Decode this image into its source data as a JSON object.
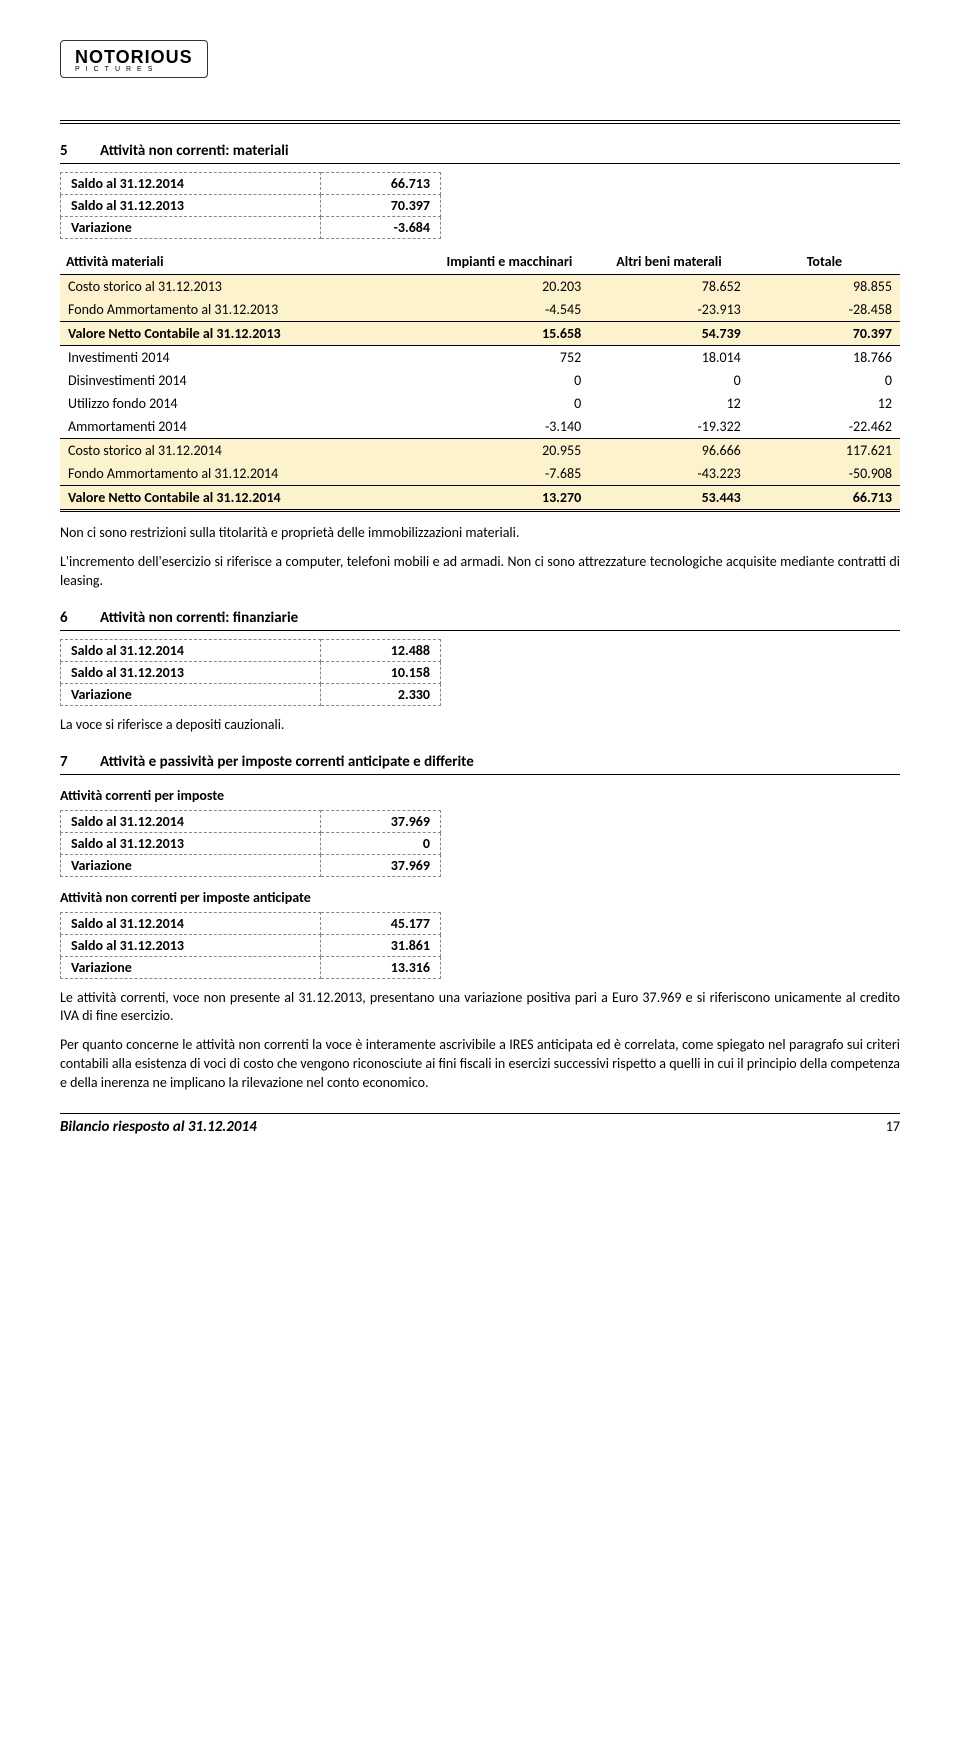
{
  "logo": {
    "title": "NOTORIOUS",
    "subtitle": "PICTURES"
  },
  "section5": {
    "num": "5",
    "title": "Attività non correnti: materiali",
    "summary": [
      {
        "label": "Saldo al 31.12.2014",
        "value": "66.713"
      },
      {
        "label": "Saldo al 31.12.2013",
        "value": "70.397"
      },
      {
        "label": "Variazione",
        "value": "-3.684"
      }
    ],
    "headers": [
      "Attività materiali",
      "Impianti e macchinari",
      "Altri beni materali",
      "Totale"
    ],
    "rows": [
      {
        "hl": true,
        "label": "Costo storico al 31.12.2013",
        "c1": "20.203",
        "c2": "78.652",
        "c3": "98.855"
      },
      {
        "hl": true,
        "underline": true,
        "label": "Fondo Ammortamento al 31.12.2013",
        "c1": "-4.545",
        "c2": "-23.913",
        "c3": "-28.458"
      },
      {
        "hl": true,
        "bold": true,
        "underline": true,
        "label": "Valore Netto Contabile al 31.12.2013",
        "c1": "15.658",
        "c2": "54.739",
        "c3": "70.397"
      },
      {
        "label": "Investimenti 2014",
        "c1": "752",
        "c2": "18.014",
        "c3": "18.766"
      },
      {
        "label": "Disinvestimenti 2014",
        "c1": "0",
        "c2": "0",
        "c3": "0"
      },
      {
        "label": "Utilizzo fondo 2014",
        "c1": "0",
        "c2": "12",
        "c3": "12"
      },
      {
        "underline": true,
        "label": "Ammortamenti 2014",
        "c1": "-3.140",
        "c2": "-19.322",
        "c3": "-22.462"
      },
      {
        "hl": true,
        "label": "Costo storico al 31.12.2014",
        "c1": "20.955",
        "c2": "96.666",
        "c3": "117.621"
      },
      {
        "hl": true,
        "underline": true,
        "label": "Fondo Ammortamento al 31.12.2014",
        "c1": "-7.685",
        "c2": "-43.223",
        "c3": "-50.908"
      },
      {
        "hl": true,
        "bold": true,
        "dblbottom": true,
        "label": "Valore Netto Contabile al 31.12.2014",
        "c1": "13.270",
        "c2": "53.443",
        "c3": "66.713"
      }
    ],
    "para1": "Non ci sono restrizioni sulla titolarità e proprietà delle immobilizzazioni materiali.",
    "para2": "L'incremento dell'esercizio si riferisce a computer, telefoni mobili e ad armadi. Non ci sono attrezzature tecnologiche acquisite mediante contratti di leasing."
  },
  "section6": {
    "num": "6",
    "title": "Attività non correnti: finanziarie",
    "summary": [
      {
        "label": "Saldo al 31.12.2014",
        "value": "12.488"
      },
      {
        "label": "Saldo al 31.12.2013",
        "value": "10.158"
      },
      {
        "label": "Variazione",
        "value": "2.330"
      }
    ],
    "para": "La voce si riferisce a depositi cauzionali."
  },
  "section7": {
    "num": "7",
    "title": "Attività e passività per imposte correnti anticipate e differite",
    "sub1": "Attività correnti per imposte",
    "summary1": [
      {
        "label": "Saldo al 31.12.2014",
        "value": "37.969"
      },
      {
        "label": "Saldo al 31.12.2013",
        "value": "0"
      },
      {
        "label": "Variazione",
        "value": "37.969"
      }
    ],
    "sub2": "Attività non correnti per imposte anticipate",
    "summary2": [
      {
        "label": "Saldo al 31.12.2014",
        "value": "45.177"
      },
      {
        "label": "Saldo al 31.12.2013",
        "value": "31.861"
      },
      {
        "label": "Variazione",
        "value": "13.316"
      }
    ],
    "para1": "Le attività correnti, voce non presente al 31.12.2013, presentano una variazione positiva pari a Euro 37.969 e si riferiscono unicamente al credito IVA di fine esercizio.",
    "para2": "Per quanto concerne le attività non correnti la voce è interamente ascrivibile a IRES anticipata ed è correlata, come spiegato nel paragrafo sui criteri contabili alla esistenza di voci di costo che vengono riconosciute ai fini fiscali in esercizi successivi rispetto a quelli in cui il principio della competenza e della inerenza ne implicano la rilevazione nel conto economico."
  },
  "footer": {
    "title": "Bilancio riesposto al 31.12.2014",
    "page": "17"
  }
}
